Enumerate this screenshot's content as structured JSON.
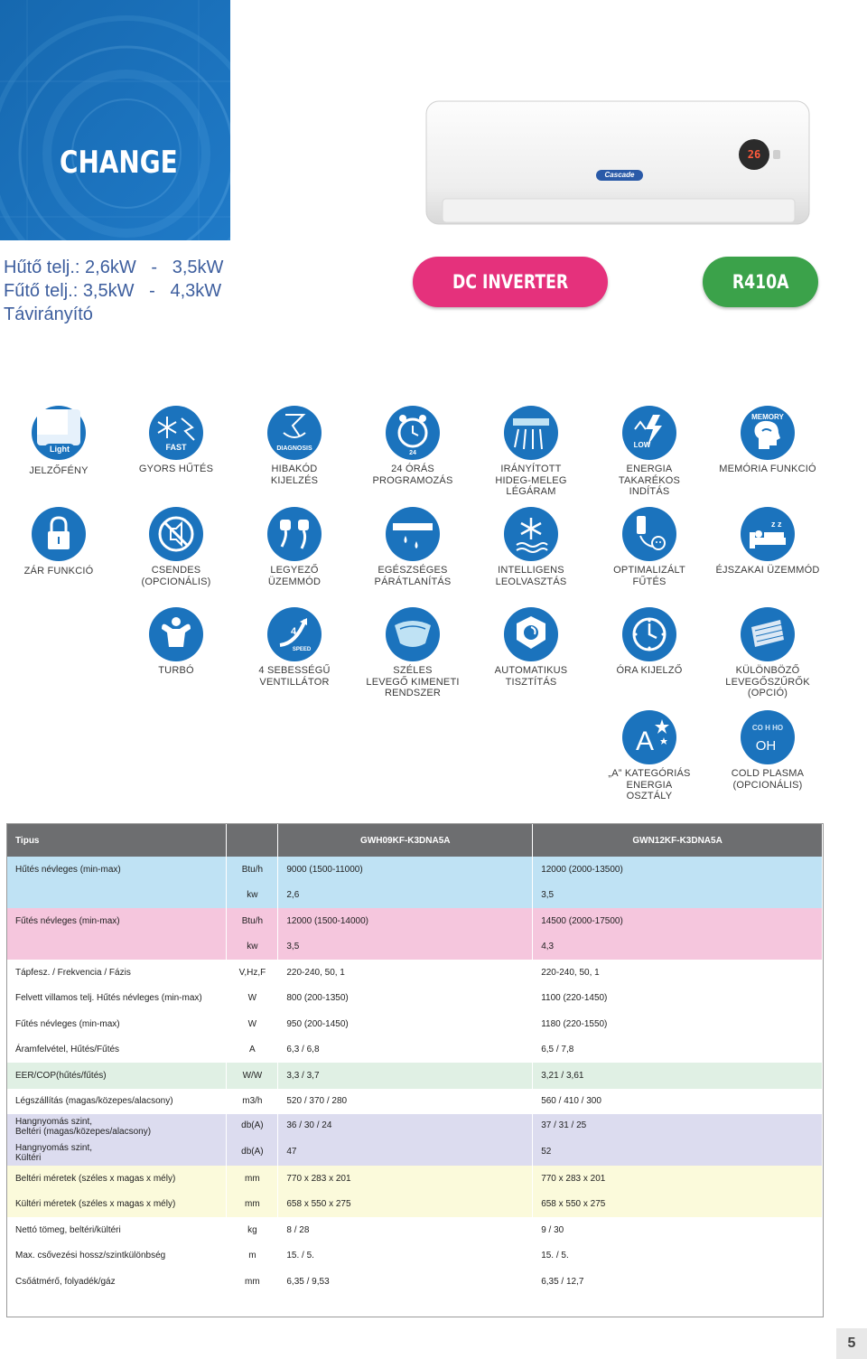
{
  "banner": {
    "title": "CHANGE"
  },
  "specs": {
    "line1": "Hűtő telj.: 2,6kW   -   3,5kW",
    "line2": "Fűtő telj.: 3,5kW   -   4,3kW",
    "line3": "Távirányító"
  },
  "ac_unit": {
    "display": "26",
    "brand": "Cascade"
  },
  "badges": {
    "dc": "DC INVERTER",
    "refrigerant": "R410A"
  },
  "icon_texts": {
    "light": "Light",
    "fast": "FAST",
    "diagnosis": "DIAGNOSIS",
    "h24": "24",
    "low": "LOW",
    "memory": "MEMORY",
    "speed4": "4",
    "speed": "SPEED",
    "coldplasma": "CO H HO",
    "oh": "OH"
  },
  "features": [
    {
      "label": "JELZŐFÉNY"
    },
    {
      "label": "GYORS HŰTÉS"
    },
    {
      "label": "HIBAKÓD\nKIJELZÉS"
    },
    {
      "label": "24 ÓRÁS\nPROGRAMOZÁS"
    },
    {
      "label": "IRÁNYÍTOTT\nHIDEG-MELEG\nLÉGÁRAM"
    },
    {
      "label": "ENERGIA\nTAKARÉKOS\nINDÍTÁS"
    },
    {
      "label": "MEMÓRIA FUNKCIÓ"
    },
    {
      "label": "ZÁR FUNKCIÓ"
    },
    {
      "label": "CSENDES\n(OPCIONÁLIS)"
    },
    {
      "label": "LEGYEZŐ\nÜZEMMÓD"
    },
    {
      "label": "EGÉSZSÉGES\nPÁRÁTLANÍTÁS"
    },
    {
      "label": "INTELLIGENS\nLEOLVASZTÁS"
    },
    {
      "label": "OPTIMALIZÁLT\nFŰTÉS"
    },
    {
      "label": "ÉJSZAKAI ÜZEMMÓD"
    },
    {
      "label": "TURBÓ"
    },
    {
      "label": "4 SEBESSÉGŰ\nVENTILLÁTOR"
    },
    {
      "label": "SZÉLES\nLEVEGŐ KIMENETI\nRENDSZER"
    },
    {
      "label": "AUTOMATIKUS\nTISZTÍTÁS"
    },
    {
      "label": "ÓRA KIJELZŐ"
    },
    {
      "label": "KÜLÖNBÖZŐ\nLEVEGŐSZŰRŐK\n(OPCIÓ)"
    },
    {
      "label": "„A” KATEGÓRIÁS\nENERGIA\nOSZTÁLY"
    },
    {
      "label": "COLD PLASMA\n(OPCIONÁLIS)"
    }
  ],
  "table": {
    "header": {
      "label": "Tipus",
      "unit": "",
      "model1": "GWH09KF-K3DNA5A",
      "model2": "GWN12KF-K3DNA5A"
    },
    "rows": [
      {
        "label": "Hűtés névleges (min-max)",
        "unit": "Btu/h",
        "v1": "9000 (1500-11000)",
        "v2": "12000 (2000-13500)"
      },
      {
        "label": "",
        "unit": "kw",
        "v1": "2,6",
        "v2": "3,5"
      },
      {
        "label": "Fűtés névleges (min-max)",
        "unit": "Btu/h",
        "v1": "12000 (1500-14000)",
        "v2": "14500 (2000-17500)"
      },
      {
        "label": "",
        "unit": "kw",
        "v1": "3,5",
        "v2": "4,3"
      },
      {
        "label": "Tápfesz. / Frekvencia / Fázis",
        "unit": "V,Hz,F",
        "v1": "220-240, 50, 1",
        "v2": "220-240, 50, 1"
      },
      {
        "label": "Felvett villamos telj. Hűtés névleges (min-max)",
        "unit": "W",
        "v1": "800 (200-1350)",
        "v2": "1100 (220-1450)"
      },
      {
        "label": "Fűtés névleges (min-max)",
        "unit": "W",
        "v1": "950 (200-1450)",
        "v2": "1180 (220-1550)"
      },
      {
        "label": "Áramfelvétel, Hűtés/Fűtés",
        "unit": "A",
        "v1": "6,3 / 6,8",
        "v2": "6,5 / 7,8"
      },
      {
        "label": "EER/COP(hűtés/fűtés)",
        "unit": "W/W",
        "v1": "3,3 / 3,7",
        "v2": "3,21 / 3,61"
      },
      {
        "label": "Légszállítás (magas/közepes/alacsony)",
        "unit": "m3/h",
        "v1": "520 / 370 / 280",
        "v2": "560 / 410 / 300"
      },
      {
        "label": "Hangnyomás szint,\nBeltéri (magas/közepes/alacsony)",
        "unit": "db(A)",
        "v1": "36 / 30 / 24",
        "v2": "37 / 31 / 25"
      },
      {
        "label": "Hangnyomás szint,\nKültéri",
        "unit": "db(A)",
        "v1": "47",
        "v2": "52"
      },
      {
        "label": "Beltéri méretek (széles x magas x mély)",
        "unit": "mm",
        "v1": "770 x 283 x 201",
        "v2": "770 x 283 x 201"
      },
      {
        "label": "Kültéri méretek (széles x magas x mély)",
        "unit": "mm",
        "v1": "658 x 550 x 275",
        "v2": "658 x 550 x 275"
      },
      {
        "label": "Nettó tömeg, beltéri/kültéri",
        "unit": "kg",
        "v1": "8 / 28",
        "v2": "9 / 30"
      },
      {
        "label": "Max. csővezési hossz/szintkülönbség",
        "unit": "m",
        "v1": "15. / 5.",
        "v2": "15. / 5."
      },
      {
        "label": "Csőátmérő, folyadék/gáz",
        "unit": "mm",
        "v1": "6,35 / 9,53",
        "v2": "6,35 / 12,7"
      }
    ]
  },
  "page_number": "5"
}
